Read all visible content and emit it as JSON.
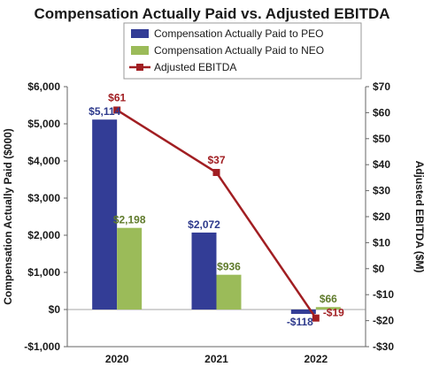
{
  "chart_data": {
    "type": "bar",
    "title": "Compensation Actually Paid vs. Adjusted EBITDA",
    "categories": [
      "2020",
      "2021",
      "2022"
    ],
    "series": [
      {
        "name": "Compensation Actually Paid to PEO",
        "type": "bar",
        "axis": "left",
        "color": "#333d96",
        "values": [
          5114,
          2072,
          -118
        ],
        "labels": [
          "$5,114",
          "$2,072",
          "-$118"
        ]
      },
      {
        "name": "Compensation Actually Paid to NEO",
        "type": "bar",
        "axis": "left",
        "color": "#9bbb59",
        "values": [
          2198,
          936,
          66
        ],
        "labels": [
          "$2,198",
          "$936",
          "$66"
        ]
      },
      {
        "name": "Adjusted EBITDA",
        "type": "line",
        "axis": "right",
        "color": "#a11e22",
        "values": [
          61,
          37,
          -19
        ],
        "labels": [
          "$61",
          "$37",
          "-$19"
        ]
      }
    ],
    "y_left": {
      "label": "Compensation Actually Paid ($000)",
      "range": [
        -1000,
        6000
      ],
      "ticks": [
        -1000,
        0,
        1000,
        2000,
        3000,
        4000,
        5000,
        6000
      ],
      "tick_labels": [
        "-$1,000",
        "$0",
        "$1,000",
        "$2,000",
        "$3,000",
        "$4,000",
        "$5,000",
        "$6,000"
      ]
    },
    "y_right": {
      "label": "Adjusted EBITDA ($M)",
      "range": [
        -30,
        70
      ],
      "ticks": [
        -30,
        -20,
        -10,
        0,
        10,
        20,
        30,
        40,
        50,
        60,
        70
      ],
      "tick_labels": [
        "-$30",
        "-$20",
        "-$10",
        "$0",
        "$10",
        "$20",
        "$30",
        "$40",
        "$50",
        "$60",
        "$70"
      ]
    },
    "grid": false,
    "legend_position": "top-center"
  },
  "colors": {
    "peo_label": "#2e3a8c",
    "neo_label": "#5f7a2b",
    "ebitda_label": "#a11e22",
    "axis": "#666666"
  }
}
